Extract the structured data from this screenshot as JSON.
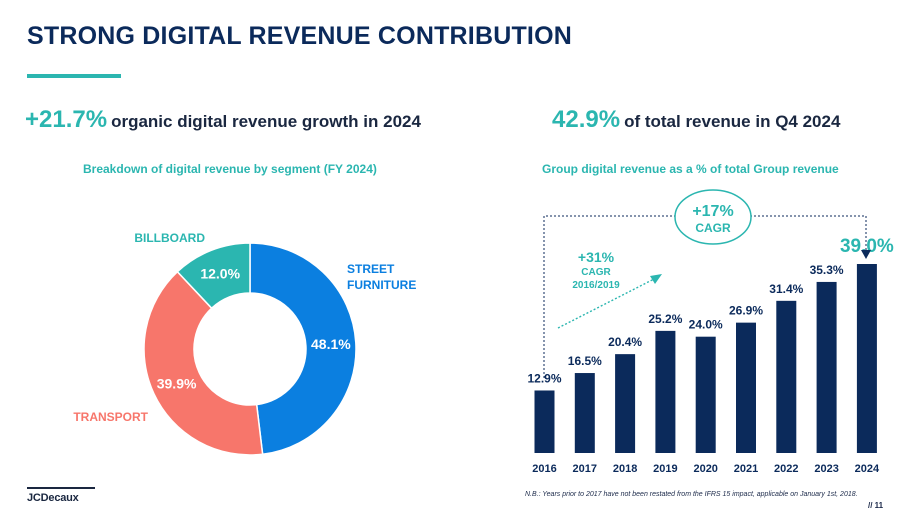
{
  "page": {
    "title": "STRONG DIGITAL REVENUE CONTRIBUTION",
    "footnote": "N.B.: Years prior to 2017 have not been restated from the IFRS 15 impact, applicable on January 1st, 2018.",
    "page_number": "// 11",
    "logo_text": "JCDecaux"
  },
  "left": {
    "headline_value": "+21.7%",
    "headline_text": "organic digital revenue growth in 2024",
    "subtitle": "Breakdown of digital revenue by segment (FY 2024)"
  },
  "right": {
    "headline_value": "42.9%",
    "headline_text": "of total revenue in Q4 2024",
    "subtitle": "Group digital revenue as a % of total Group revenue",
    "cagr_1": {
      "value": "+31%",
      "label_1": "CAGR",
      "label_2": "2016/2019"
    },
    "cagr_2": {
      "value": "+17%",
      "label": "CAGR"
    }
  },
  "colors": {
    "teal": "#2bb6b0",
    "navy": "#0b2a5b",
    "blue": "#0b7fe0",
    "coral": "#f7766b"
  },
  "chart_data": [
    {
      "type": "pie",
      "title": "Breakdown of digital revenue by segment (FY 2024)",
      "slices": [
        {
          "name": "STREET FURNITURE",
          "name_lines": [
            "STREET",
            "FURNITURE"
          ],
          "value": 48.1,
          "label": "48.1%",
          "color": "#0b7fe0"
        },
        {
          "name": "TRANSPORT",
          "name_lines": [
            "TRANSPORT"
          ],
          "value": 39.9,
          "label": "39.9%",
          "color": "#f7766b"
        },
        {
          "name": "BILLBOARD",
          "name_lines": [
            "BILLBOARD"
          ],
          "value": 12.0,
          "label": "12.0%",
          "color": "#2bb6b0"
        }
      ]
    },
    {
      "type": "bar",
      "title": "Group digital revenue as a % of total Group revenue",
      "categories": [
        "2016",
        "2017",
        "2018",
        "2019",
        "2020",
        "2021",
        "2022",
        "2023",
        "2024"
      ],
      "values": [
        12.9,
        16.5,
        20.4,
        25.2,
        24.0,
        26.9,
        31.4,
        35.3,
        39.0
      ],
      "labels": [
        "12.9%",
        "16.5%",
        "20.4%",
        "25.2%",
        "24.0%",
        "26.9%",
        "31.4%",
        "35.3%",
        "39.0%"
      ],
      "bar_color": "#0b2a5b",
      "highlight_last_color": "#2bb6b0"
    }
  ]
}
